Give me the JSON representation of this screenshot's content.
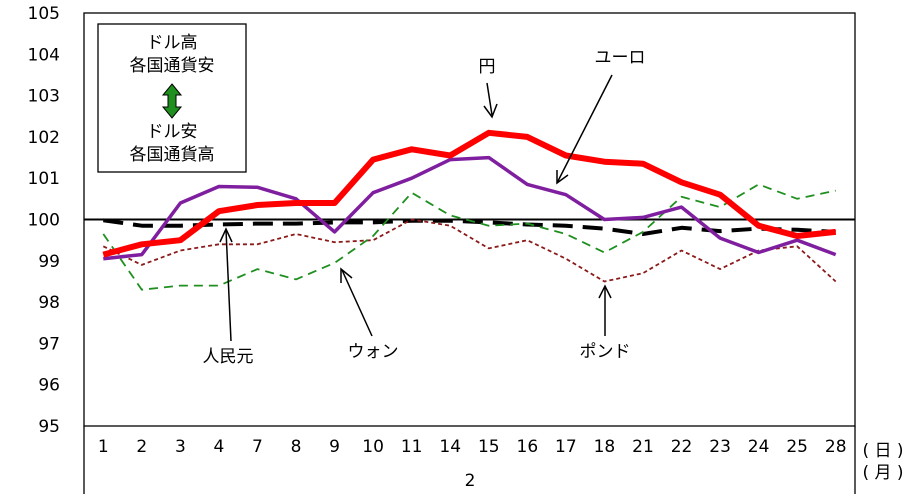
{
  "chart_data": {
    "type": "line",
    "ylim": [
      95,
      105
    ],
    "yticks": [
      "95",
      "96",
      "97",
      "98",
      "99",
      "100",
      "101",
      "102",
      "103",
      "104",
      "105"
    ],
    "categories": [
      "1",
      "2",
      "3",
      "4",
      "7",
      "8",
      "9",
      "10",
      "11",
      "14",
      "15",
      "16",
      "17",
      "18",
      "21",
      "22",
      "23",
      "24",
      "25",
      "28"
    ],
    "x_unit_label": "( 日 )",
    "month_unit_label": "( 月 )",
    "month_label": "2",
    "legend_box": {
      "line1": "ドル高",
      "line2": "各国通貨安",
      "line3": "ドル安",
      "line4": "各国通貨高"
    },
    "grid": false,
    "baseline": 100,
    "series": [
      {
        "name": "ユーロ",
        "color": "#ff0000",
        "style": "solid-thick",
        "values": [
          99.15,
          99.4,
          99.5,
          100.2,
          100.35,
          100.4,
          100.4,
          101.45,
          101.7,
          101.55,
          102.1,
          102.0,
          101.55,
          101.4,
          101.35,
          100.9,
          100.6,
          99.85,
          99.6,
          99.7
        ]
      },
      {
        "name": "円",
        "color": "#7f1f9f",
        "style": "solid",
        "values": [
          99.05,
          99.15,
          100.4,
          100.8,
          100.78,
          100.5,
          99.7,
          100.65,
          101.0,
          101.45,
          101.5,
          100.85,
          100.6,
          100.0,
          100.05,
          100.3,
          99.55,
          99.2,
          99.5,
          99.15
        ]
      },
      {
        "name": "ウォン",
        "color": "#1f8f1f",
        "style": "dashed",
        "values": [
          99.65,
          98.3,
          98.4,
          98.4,
          98.8,
          98.55,
          98.95,
          99.6,
          100.65,
          100.1,
          99.85,
          99.9,
          99.65,
          99.2,
          99.7,
          100.55,
          100.3,
          100.85,
          100.5,
          100.7
        ]
      },
      {
        "name": "ポンド",
        "color": "#8b1a1a",
        "style": "dotted",
        "values": [
          99.35,
          98.9,
          99.25,
          99.4,
          99.4,
          99.65,
          99.45,
          99.5,
          100.0,
          99.85,
          99.3,
          99.5,
          99.05,
          98.5,
          98.7,
          99.25,
          98.8,
          99.25,
          99.35,
          98.5
        ]
      },
      {
        "name": "人民元",
        "color": "#000000",
        "style": "long-dash",
        "values": [
          99.98,
          99.85,
          99.85,
          99.88,
          99.9,
          99.9,
          99.93,
          99.93,
          99.97,
          99.97,
          99.93,
          99.88,
          99.85,
          99.78,
          99.65,
          99.8,
          99.72,
          99.78,
          99.75,
          99.7
        ]
      }
    ],
    "annotations": [
      {
        "label": "円",
        "series": "円"
      },
      {
        "label": "ユーロ",
        "series": "ユーロ"
      },
      {
        "label": "人民元",
        "series": "人民元"
      },
      {
        "label": "ウォン",
        "series": "ウォン"
      },
      {
        "label": "ポンド",
        "series": "ポンド"
      }
    ]
  }
}
